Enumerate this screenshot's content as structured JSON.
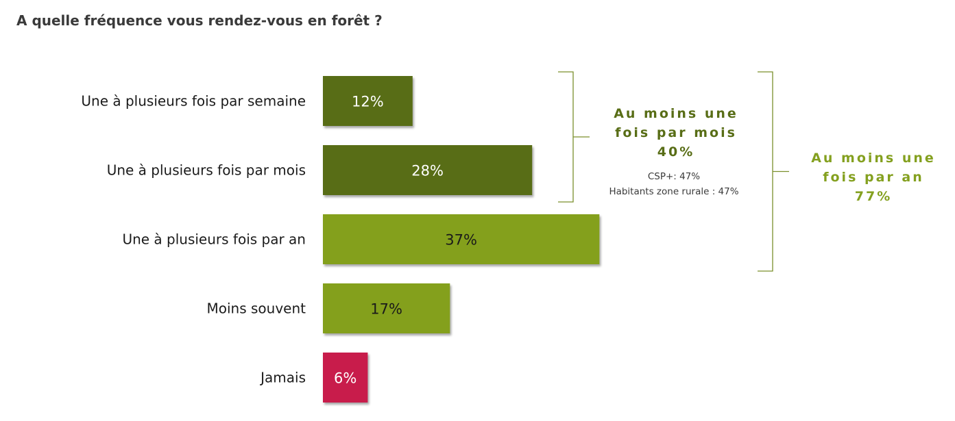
{
  "title": "A quelle fréquence vous rendez-vous en forêt ?",
  "colors": {
    "dark_green": "#586d16",
    "light_green": "#84a01f",
    "crimson": "#c81e4c",
    "group_dark_text": "#586d16",
    "group_light_text": "#84a01f",
    "bracket": "#7a8f2b"
  },
  "chart_data": {
    "type": "bar",
    "orientation": "horizontal",
    "title": "A quelle fréquence vous rendez-vous en forêt ?",
    "categories": [
      "Une à plusieurs fois par semaine",
      "Une à plusieurs fois par mois",
      "Une à plusieurs fois par an",
      "Moins souvent",
      "Jamais"
    ],
    "values": [
      12,
      28,
      37,
      17,
      6
    ],
    "labels": [
      "12%",
      "28%",
      "37%",
      "17%",
      "6%"
    ],
    "bar_colors": [
      "#586d16",
      "#586d16",
      "#84a01f",
      "#84a01f",
      "#c81e4c"
    ],
    "label_colors": [
      "#ffffff",
      "#ffffff",
      "#1a1a1a",
      "#1a1a1a",
      "#ffffff"
    ],
    "unit": "%",
    "annotations": [
      {
        "id": "monthly",
        "lines": [
          "Au moins une",
          "fois par mois",
          "40%"
        ],
        "notes": [
          "CSP+: 47%",
          "Habitants zone rurale : 47%"
        ],
        "spans": [
          0,
          1
        ],
        "color": "#586d16"
      },
      {
        "id": "yearly",
        "lines": [
          "Au moins une",
          "fois par an",
          "77%"
        ],
        "notes": [],
        "spans": [
          0,
          2
        ],
        "color": "#84a01f"
      }
    ]
  }
}
